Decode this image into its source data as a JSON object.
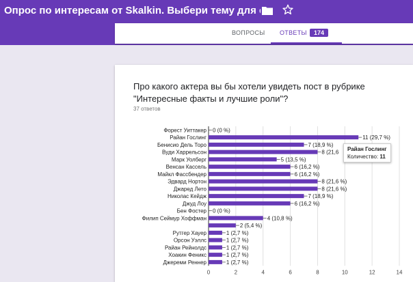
{
  "header": {
    "title": "Опрос по интересам от Skalkin. Выбери тему для следующих г",
    "folder_icon": "folder-icon",
    "star_icon": "star-icon"
  },
  "tabs": {
    "questions": "ВОПРОСЫ",
    "answers": "ОТВЕТЫ",
    "answers_count": "174"
  },
  "question": {
    "text": "Про какого актера вы бы хотели увидеть пост в рубрике \"Интересные факты и лучшие роли\"?",
    "responses": "37 ответов"
  },
  "tooltip": {
    "name": "Райан Гослинг",
    "label": "Количество:",
    "value": "11"
  },
  "chart_data": {
    "type": "bar",
    "orientation": "horizontal",
    "categories": [
      "Форест Уиттакер",
      "Райан Гослинг",
      "Бенисио Дель Торо",
      "Вуди Харрельсон",
      "Марк Уолберг",
      "Венсан Кассель",
      "Майкл Фассбендер",
      "Эдвард Нортон",
      "Джаред Лето",
      "Николас Кейдж",
      "Джуд Лоу",
      "Бен Фостер",
      "Филип Сеймур Хоффман",
      "",
      "Рутгер Хауер",
      "Орсон Уэллс",
      "Райан Рейнолдс",
      "Хоакин Феникс",
      "Джереми Реннер"
    ],
    "values": [
      0,
      11,
      7,
      8,
      5,
      6,
      6,
      8,
      8,
      7,
      6,
      0,
      4,
      2,
      1,
      1,
      1,
      1,
      1
    ],
    "data_labels": [
      "0 (0 %)",
      "11 (29,7 %)",
      "7 (18,9 %)",
      "8 (21,6",
      "5 (13,5 %)",
      "6 (16,2 %)",
      "6 (16,2 %)",
      "8 (21,6 %)",
      "8 (21,6 %)",
      "7 (18,9 %)",
      "6 (16,2 %)",
      "0 (0 %)",
      "4 (10,8 %)",
      "2 (5,4 %)",
      "1 (2,7 %)",
      "1 (2,7 %)",
      "1 (2,7 %)",
      "1 (2,7 %)",
      "1 (2,7 %)"
    ],
    "xlim": [
      0,
      14
    ],
    "xticks": [
      "0",
      "2",
      "4",
      "6",
      "8",
      "10",
      "12",
      "14"
    ],
    "bar_color": "#673ab7",
    "grid": true
  }
}
